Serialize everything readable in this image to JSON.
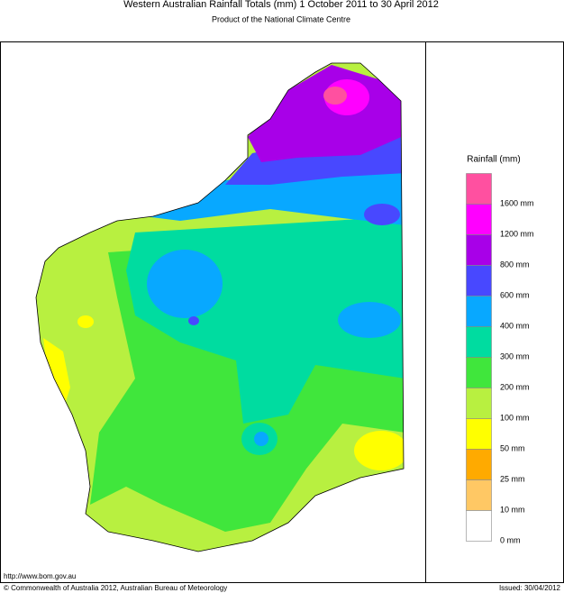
{
  "title": "Western Australian Rainfall Totals (mm) 1 October 2011 to 30 April 2012",
  "subtitle": "Product of the National Climate Centre",
  "legend": {
    "title": "Rainfall (mm)",
    "labels": [
      "1600 mm",
      "1200 mm",
      "800 mm",
      "600 mm",
      "400 mm",
      "300 mm",
      "200 mm",
      "100 mm",
      "50 mm",
      "25 mm",
      "10 mm",
      "0 mm"
    ],
    "colors": [
      "#ff50a0",
      "#ff00ff",
      "#a800e8",
      "#4848ff",
      "#08a8ff",
      "#00dca0",
      "#40e63c",
      "#b8f040",
      "#ffff00",
      "#ffaa00",
      "#ffc864",
      "#ffffff"
    ]
  },
  "footer": {
    "url": "http://www.bom.gov.au",
    "copyright": "© Commonwealth of Australia 2012, Australian Bureau of Meteorology",
    "issued": "Issued: 30/04/2012"
  }
}
